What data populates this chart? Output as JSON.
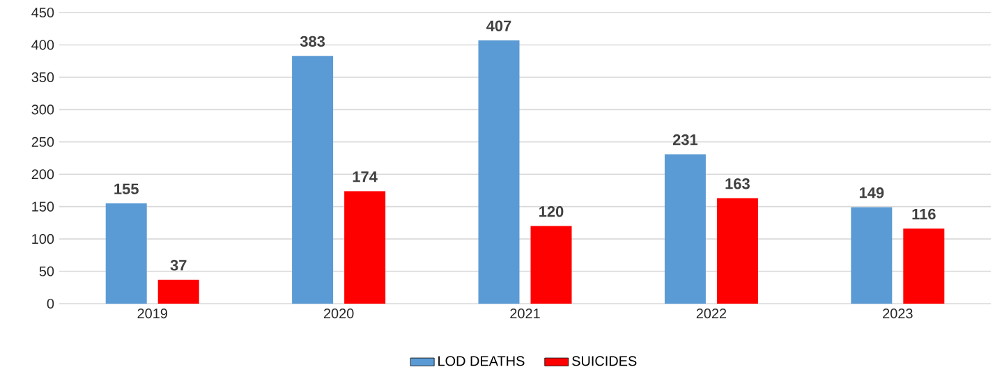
{
  "chart_data": {
    "type": "bar",
    "categories": [
      "2019",
      "2020",
      "2021",
      "2022",
      "2023"
    ],
    "series": [
      {
        "name": "LOD DEATHS",
        "color": "#5b9bd5",
        "values": [
          155,
          383,
          407,
          231,
          149
        ]
      },
      {
        "name": "SUICIDES",
        "color": "#ff0000",
        "values": [
          37,
          174,
          120,
          163,
          116
        ]
      }
    ],
    "ylim": [
      0,
      450
    ],
    "yticks": [
      0,
      50,
      100,
      150,
      200,
      250,
      300,
      350,
      400,
      450
    ],
    "grid": "y",
    "legend": "bottom",
    "data_labels": true
  }
}
